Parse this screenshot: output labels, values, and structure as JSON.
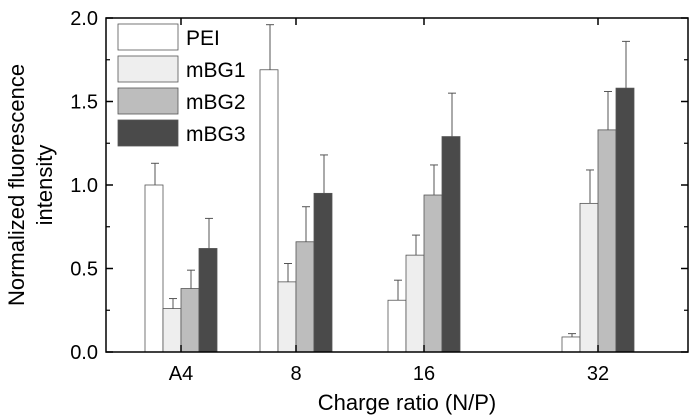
{
  "chart_data": {
    "type": "bar",
    "categories": [
      "A4",
      "8",
      "16",
      "32"
    ],
    "xlabel": "Charge ratio (N/P)",
    "ylabel": "Normalized fluorescence intensity",
    "ylabel_lines": [
      "Normalized fluorescence",
      "intensity"
    ],
    "ylim": [
      0.0,
      2.0
    ],
    "yticks": [
      0.0,
      0.5,
      1.0,
      1.5,
      2.0
    ],
    "ytick_labels": [
      "0.0",
      "0.5",
      "1.0",
      "1.5",
      "2.0"
    ],
    "grid": false,
    "legend_position": "top-left",
    "series": [
      {
        "name": "PEI",
        "color": "#ffffff",
        "values": [
          1.0,
          1.69,
          0.31,
          0.09
        ],
        "errors": [
          0.13,
          0.27,
          0.12,
          0.02
        ]
      },
      {
        "name": "mBG1",
        "color": "#eeeeee",
        "values": [
          0.26,
          0.42,
          0.58,
          0.89
        ],
        "errors": [
          0.06,
          0.11,
          0.12,
          0.2
        ]
      },
      {
        "name": "mBG2",
        "color": "#bdbdbd",
        "values": [
          0.38,
          0.66,
          0.94,
          1.33
        ],
        "errors": [
          0.11,
          0.21,
          0.18,
          0.23
        ]
      },
      {
        "name": "mBG3",
        "color": "#4a4a4a",
        "values": [
          0.62,
          0.95,
          1.29,
          1.58
        ],
        "errors": [
          0.18,
          0.23,
          0.26,
          0.28
        ]
      }
    ]
  }
}
